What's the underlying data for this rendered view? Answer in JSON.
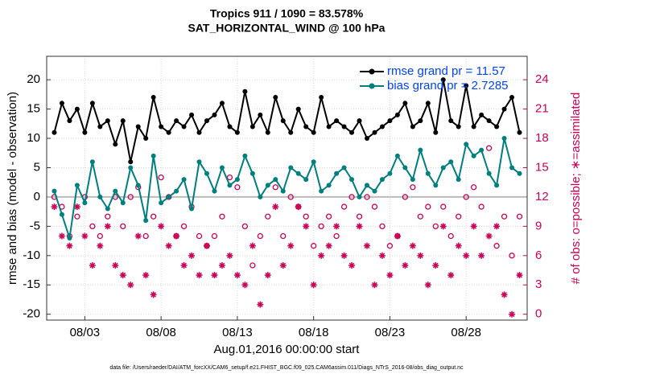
{
  "chart_data": {
    "type": "line",
    "title": "Tropics 911 / 1090 = 83.578%",
    "subtitle": "SAT_HORIZONTAL_WIND @ 100 hPa",
    "xlabel": "Aug.01,2016 00:00:00 start",
    "ylabel": "rmse and bias (model - observation)",
    "y2label": "# of obs: o=possible; ∗=assimilated",
    "footnote": "data file: /Users/raeder/DAI/ATM_forcXX/CAM6_setup/f.e21.FHIST_BGC.f09_025.CAM6assim.011/Diags_NTrS_2016-08/obs_diag_output.nc",
    "grid": true,
    "legend": "top-right",
    "xlim": [
      -0.5,
      31
    ],
    "xticks": [
      {
        "value": 2,
        "label": "08/03"
      },
      {
        "value": 7,
        "label": "08/08"
      },
      {
        "value": 12,
        "label": "08/13"
      },
      {
        "value": 17,
        "label": "08/18"
      },
      {
        "value": 22,
        "label": "08/23"
      },
      {
        "value": 27,
        "label": "08/28"
      }
    ],
    "ylim": [
      -21,
      24
    ],
    "yticks": [
      -20,
      -15,
      -10,
      -5,
      0,
      5,
      10,
      15,
      20
    ],
    "y2lim": [
      -0.6,
      26.4
    ],
    "y2ticks": [
      0,
      3,
      6,
      9,
      12,
      15,
      18,
      21,
      24
    ],
    "x": [
      0,
      0.5,
      1,
      1.5,
      2,
      2.5,
      3,
      3.5,
      4,
      4.5,
      5,
      5.5,
      6,
      6.5,
      7,
      7.5,
      8,
      8.5,
      9,
      9.5,
      10,
      10.5,
      11,
      11.5,
      12,
      12.5,
      13,
      13.5,
      14,
      14.5,
      15,
      15.5,
      16,
      16.5,
      17,
      17.5,
      18,
      18.5,
      19,
      19.5,
      20,
      20.5,
      21,
      21.5,
      22,
      22.5,
      23,
      23.5,
      24,
      24.5,
      25,
      25.5,
      26,
      26.5,
      27,
      27.5,
      28,
      28.5,
      29,
      29.5,
      30,
      30.5
    ],
    "series": [
      {
        "name": "rmse grand pr = 11.57",
        "color": "#000000",
        "values": [
          11,
          16,
          13,
          15,
          11,
          16,
          12,
          13,
          9,
          13,
          6,
          12,
          10,
          17,
          12,
          11,
          13,
          12,
          14,
          11,
          13,
          14,
          16,
          12,
          11,
          18,
          12,
          14,
          11,
          17,
          13,
          11,
          15,
          12,
          11,
          17,
          12,
          13,
          12,
          11,
          13,
          10,
          11,
          12,
          13,
          14,
          16,
          12,
          13,
          16,
          11,
          20,
          13,
          12,
          19,
          12,
          14,
          13,
          12,
          15,
          17,
          11
        ]
      },
      {
        "name": "bias grand pr = 2.7285",
        "color": "#007f7f",
        "values": [
          1,
          -3,
          -7,
          2,
          -1,
          6,
          0,
          -2,
          1,
          -1,
          5,
          2,
          -4,
          7,
          -1,
          0,
          1,
          3,
          -2,
          6,
          4,
          1,
          5,
          2,
          3,
          7,
          4,
          0,
          2,
          3,
          1,
          5,
          4,
          3,
          6,
          1,
          2,
          4,
          5,
          3,
          0,
          2,
          1,
          3,
          4,
          7,
          5,
          3,
          8,
          4,
          2,
          5,
          6,
          3,
          9,
          7,
          8,
          4,
          2,
          10,
          5,
          4
        ]
      }
    ],
    "counts": [
      {
        "marker": "o",
        "color": "#cc0055",
        "axis": "y2",
        "values": [
          12,
          11,
          8,
          10,
          12,
          9,
          8,
          10,
          12,
          9,
          12,
          13,
          8,
          10,
          14,
          12,
          8,
          9,
          11,
          8,
          7,
          8,
          10,
          14,
          13,
          9,
          5,
          8,
          10,
          13,
          8,
          12,
          11,
          10,
          7,
          9,
          10,
          8,
          11,
          12,
          10,
          12,
          11,
          9,
          7,
          8,
          12,
          13,
          10,
          11,
          9,
          11,
          8,
          10,
          12,
          13,
          11,
          17,
          7,
          10,
          6,
          10
        ]
      },
      {
        "marker": "*",
        "color": "#cc0055",
        "axis": "y2",
        "values": [
          11,
          8,
          7,
          11,
          8,
          5,
          7,
          9,
          5,
          4,
          3,
          8,
          4,
          2,
          9,
          7,
          8,
          5,
          6,
          4,
          7,
          4,
          5,
          6,
          4,
          3,
          7,
          1,
          4,
          11,
          5,
          7,
          11,
          9,
          3,
          6,
          7,
          9,
          6,
          5,
          9,
          7,
          3,
          6,
          4,
          8,
          5,
          7,
          6,
          3,
          5,
          9,
          4,
          7,
          6,
          9,
          6,
          8,
          9,
          2,
          0,
          4
        ]
      }
    ],
    "legend_text_color": "#0044ff",
    "zero_line_color": "#bbbbbb"
  }
}
